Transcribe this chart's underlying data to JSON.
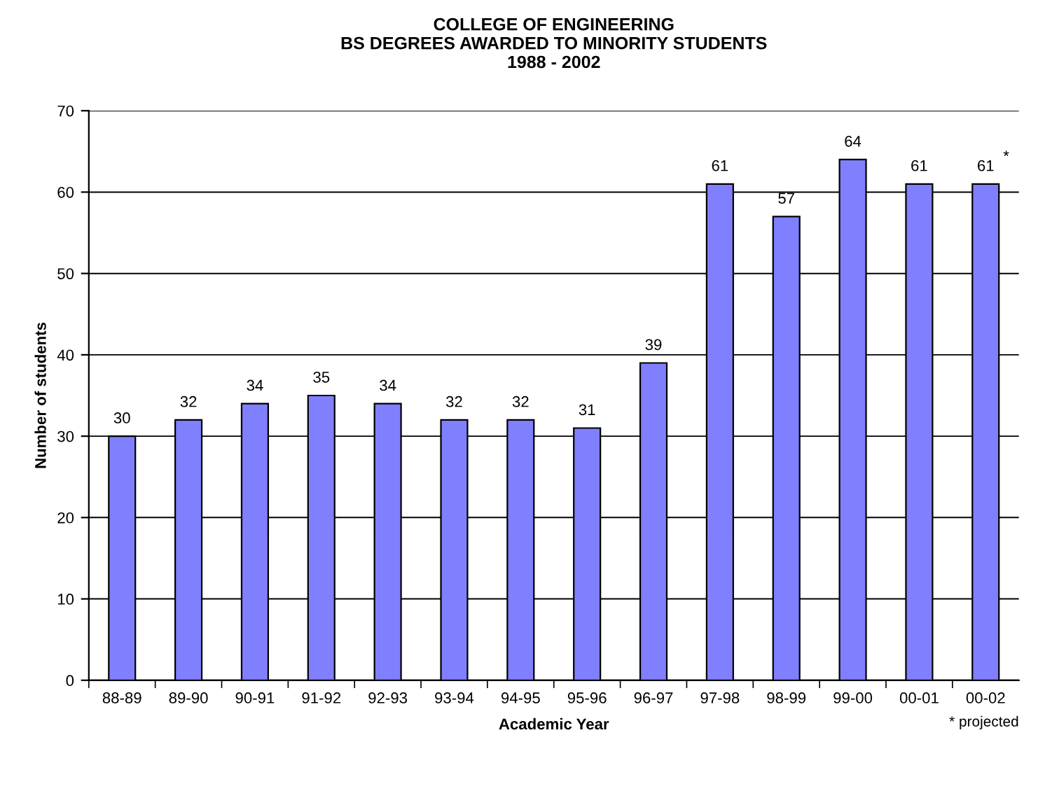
{
  "chart_data": {
    "type": "bar",
    "title": "COLLEGE OF ENGINEERING\nBS DEGREES AWARDED TO MINORITY STUDENTS\n1988 - 2002",
    "xlabel": "Academic Year",
    "ylabel": "Number of students",
    "categories": [
      "88-89",
      "89-90",
      "90-91",
      "91-92",
      "92-93",
      "93-94",
      "94-95",
      "95-96",
      "96-97",
      "97-98",
      "98-99",
      "99-00",
      "00-01",
      "00-02"
    ],
    "values": [
      30,
      32,
      34,
      35,
      34,
      32,
      32,
      31,
      39,
      61,
      57,
      64,
      61,
      61
    ],
    "color": "#8080ff",
    "ylim": [
      0,
      70
    ],
    "yticks": [
      0,
      10,
      20,
      30,
      40,
      50,
      60,
      70
    ],
    "grid": "y",
    "data_labels": true,
    "annotations": [
      {
        "text": "*",
        "x": "00-02",
        "y": 61
      },
      "* projected"
    ]
  }
}
